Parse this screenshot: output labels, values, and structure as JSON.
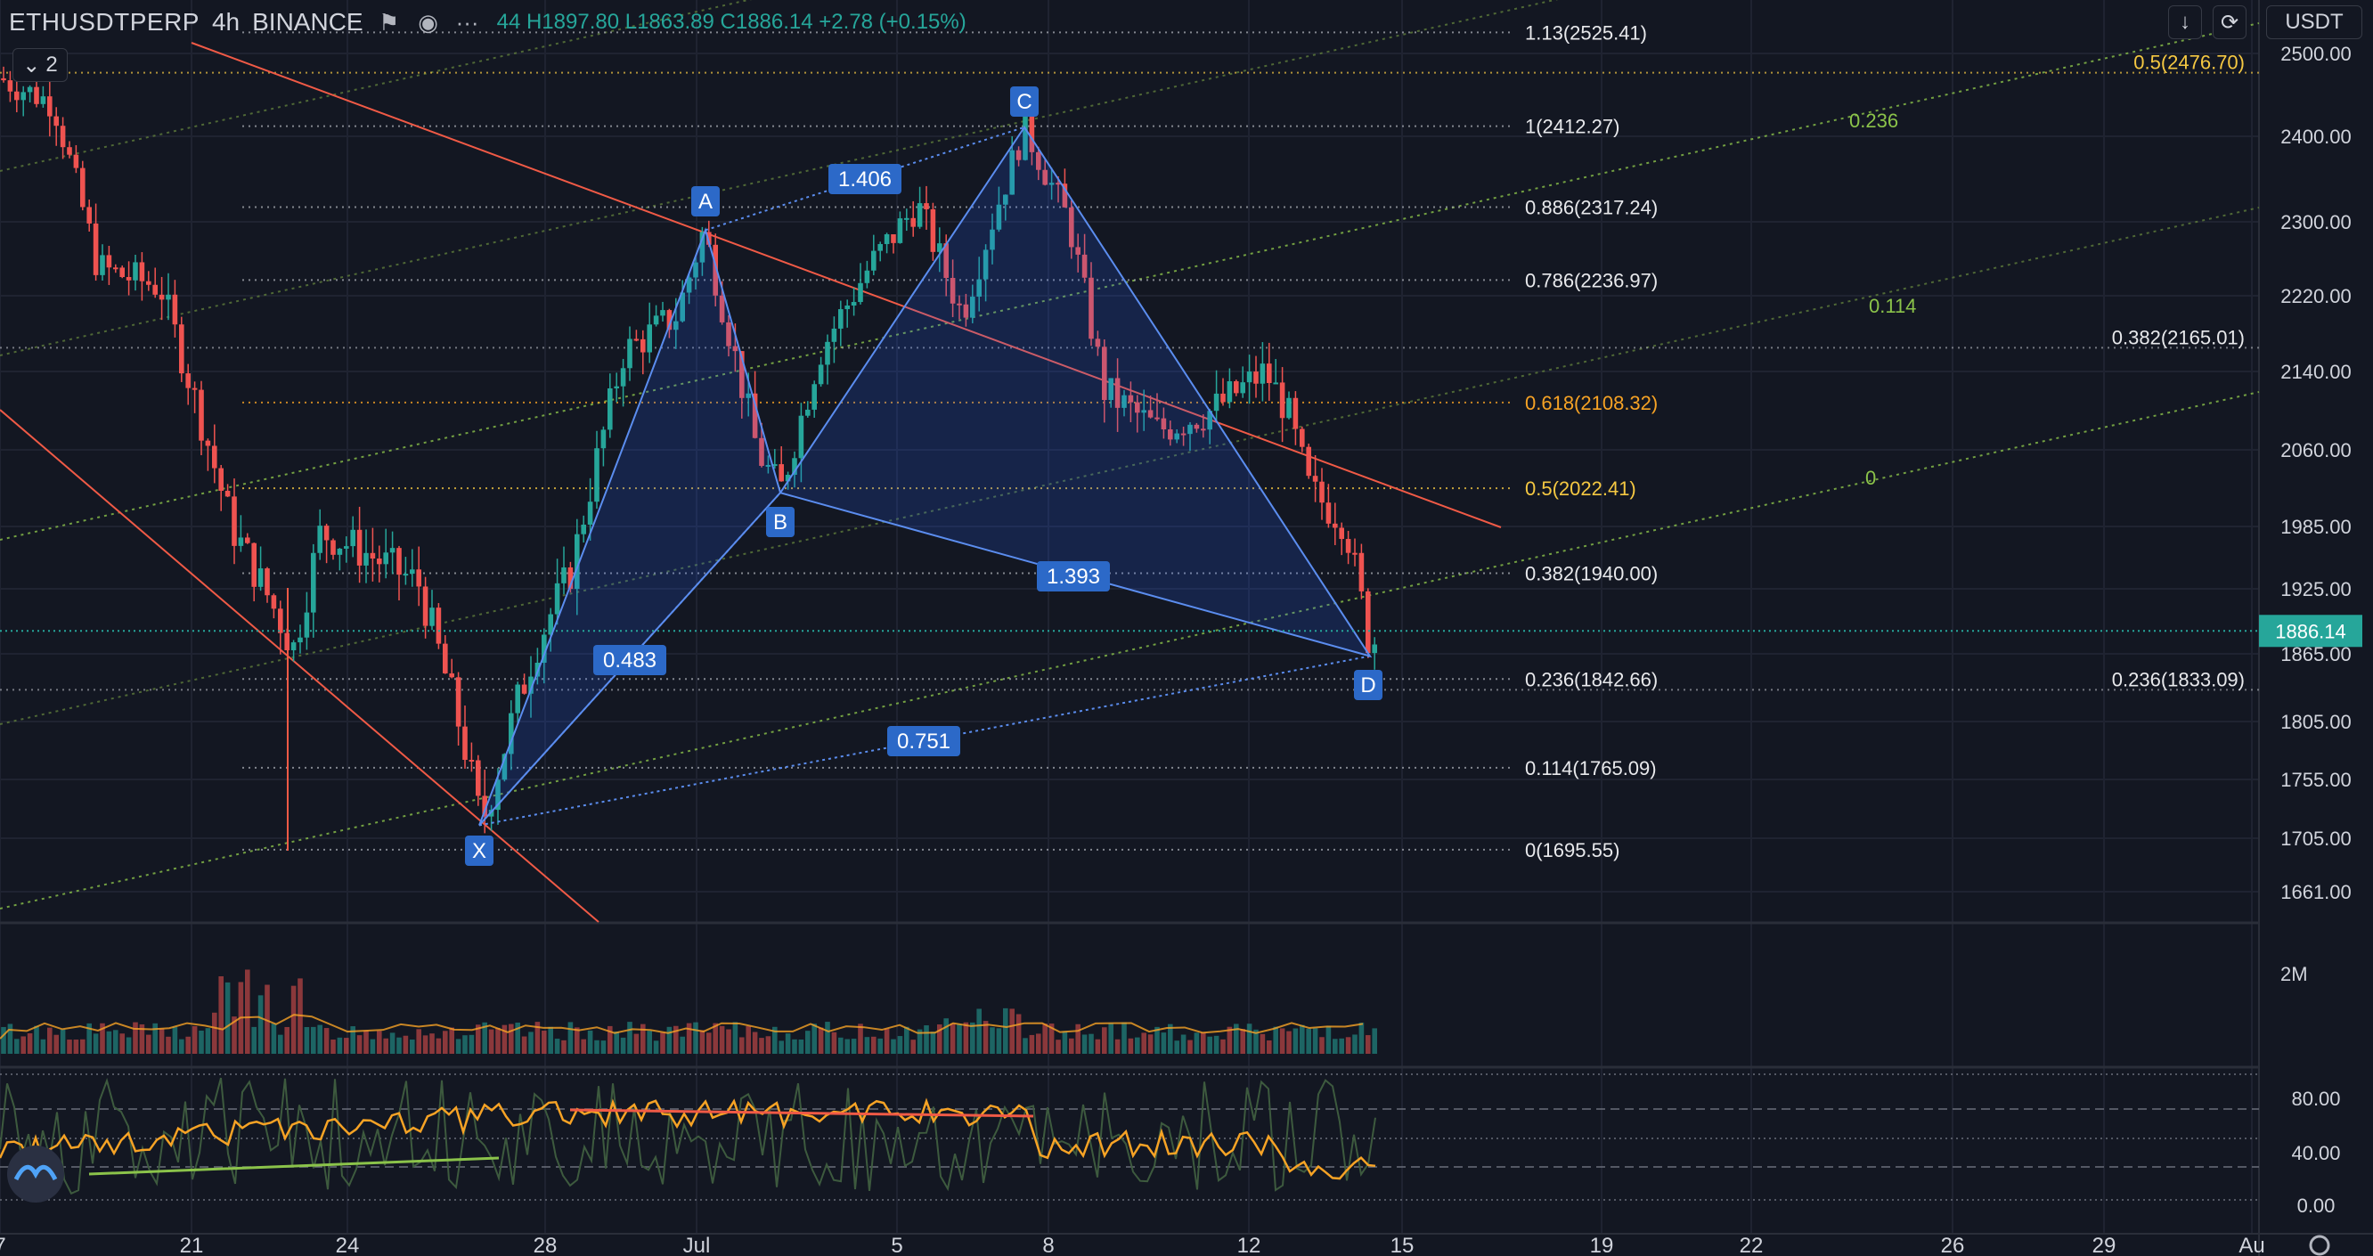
{
  "header": {
    "symbol": "ETHUSDTPERP",
    "interval": "4h",
    "exchange": "BINANCE",
    "ohlc_partial": "44",
    "high": "H1897.80",
    "low": "L1863.89",
    "close": "C1886.14",
    "change": "+2.78 (+0.15%)"
  },
  "toolbar": {
    "collapse_count": "2",
    "currency": "USDT"
  },
  "icons": [
    "flag-icon",
    "eye-icon",
    "more-icon",
    "download-icon",
    "screenshot-icon",
    "logo-icon",
    "settings-icon"
  ],
  "colors": {
    "background": "#131722",
    "candle_up": "#26a69a",
    "candle_down": "#ef5350",
    "harmonic_fill": "#2962ff",
    "trendline": "#f05a46",
    "price_label": "#26a69a",
    "fib_gold": "#f5c842",
    "fib_orange": "#f7a325",
    "fib_green": "#8bc34a"
  },
  "chart_data": {
    "type": "candlestick",
    "price_axis": {
      "ticks": [
        "2500.00",
        "2400.00",
        "2300.00",
        "2220.00",
        "2140.00",
        "2060.00",
        "1985.00",
        "1925.00",
        "1865.00",
        "1805.00",
        "1755.00",
        "1705.00",
        "1661.00"
      ],
      "current_price": "1886.14"
    },
    "time_axis": {
      "ticks": [
        "7",
        "21",
        "24",
        "28",
        "Jul",
        "5",
        "8",
        "12",
        "15",
        "19",
        "22",
        "26",
        "29",
        "Au"
      ]
    },
    "harmonic_pattern": {
      "points": [
        {
          "label": "X",
          "price": 1716
        },
        {
          "label": "A",
          "price": 2291
        },
        {
          "label": "B",
          "price": 2018
        },
        {
          "label": "C",
          "price": 2411
        },
        {
          "label": "D",
          "price": 1863
        }
      ],
      "ratios": [
        "0.483",
        "1.406",
        "1.393",
        "0.751"
      ]
    },
    "fib_retracement": [
      {
        "label": "1.13(2525.41)",
        "price": 2525.41
      },
      {
        "label": "1(2412.27)",
        "price": 2412.27
      },
      {
        "label": "0.886(2317.24)",
        "price": 2317.24
      },
      {
        "label": "0.786(2236.97)",
        "price": 2236.97
      },
      {
        "label": "0.618(2108.32)",
        "price": 2108.32
      },
      {
        "label": "0.5(2022.41)",
        "price": 2022.41
      },
      {
        "label": "0.382(1940.00)",
        "price": 1940.0
      },
      {
        "label": "0.236(1842.66)",
        "price": 1842.66
      },
      {
        "label": "0.114(1765.09)",
        "price": 1765.09
      },
      {
        "label": "0(1695.55)",
        "price": 1695.55
      }
    ],
    "fib_right": [
      {
        "label": "0.5(2476.70)",
        "price": 2476.7
      },
      {
        "label": "0.382(2165.01)",
        "price": 2165.01
      },
      {
        "label": "0.236(1833.09)",
        "price": 1833.09
      }
    ],
    "fib_channel_labels": [
      "0.236",
      "0.114",
      "0"
    ],
    "volume": {
      "axis_label": "2M"
    },
    "oscillator": {
      "ticks": [
        "80.00",
        "40.00",
        "0.00"
      ]
    }
  }
}
